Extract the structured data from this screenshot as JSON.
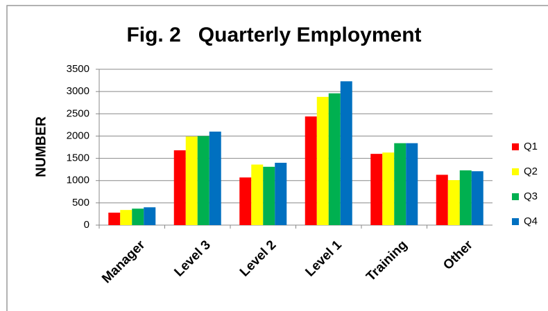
{
  "chart_data": {
    "type": "bar",
    "title": "Fig. 2   Quarterly Employment",
    "y_label": "NUMBER",
    "categories": [
      "Manager",
      "Level 3",
      "Level 2",
      "Level 1",
      "Training",
      "Other"
    ],
    "series": [
      {
        "name": "Q1",
        "color": "#ff0000",
        "values": [
          280,
          1680,
          1070,
          2440,
          1600,
          1130
        ]
      },
      {
        "name": "Q2",
        "color": "#ffff00",
        "values": [
          340,
          1990,
          1360,
          2880,
          1630,
          1010
        ]
      },
      {
        "name": "Q3",
        "color": "#00b050",
        "values": [
          370,
          2000,
          1310,
          2960,
          1840,
          1230
        ]
      },
      {
        "name": "Q4",
        "color": "#0070c0",
        "values": [
          400,
          2100,
          1400,
          3230,
          1840,
          1210
        ]
      }
    ],
    "ylim": [
      0,
      3500
    ],
    "yticks": [
      0,
      500,
      1000,
      1500,
      2000,
      2500,
      3000,
      3500
    ],
    "grid": true,
    "legend": "right"
  }
}
